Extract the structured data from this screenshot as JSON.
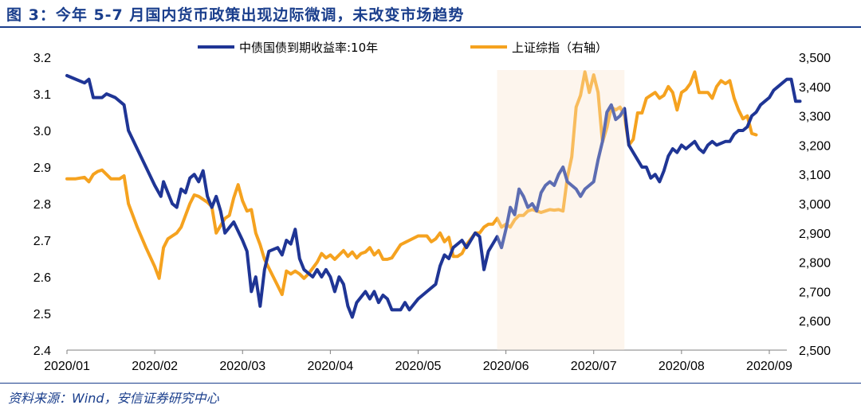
{
  "title": "图 3：今年 5-7 月国内货币政策出现边际微调，未改变市场趋势",
  "source": "资料来源：Wind，安信证券研究中心",
  "colors": {
    "bond": "#1f3595",
    "index": "#f5a21f",
    "shade": "#fdf1e7",
    "title": "#1a3e8c"
  },
  "chart_data": {
    "type": "line",
    "x_ticks": [
      "2020/01",
      "2020/02",
      "2020/03",
      "2020/04",
      "2020/05",
      "2020/06",
      "2020/07",
      "2020/08",
      "2020/09"
    ],
    "y_left": {
      "min": 2.4,
      "max": 3.2,
      "ticks": [
        "2.4",
        "2.5",
        "2.6",
        "2.7",
        "2.8",
        "2.9",
        "3.0",
        "3.1",
        "3.2"
      ]
    },
    "y_right": {
      "min": 2500,
      "max": 3500,
      "ticks": [
        "2,500",
        "2,600",
        "2,700",
        "2,800",
        "2,900",
        "3,000",
        "3,100",
        "3,200",
        "3,300",
        "3,400",
        "3,500"
      ]
    },
    "shaded_range": {
      "from_month": 4.9,
      "to_month": 6.35,
      "label": "May–Jul 2020"
    },
    "series": [
      {
        "name": "中债国债到期收益率:10年",
        "axis": "left",
        "points": [
          [
            0.0,
            3.15
          ],
          [
            0.1,
            3.14
          ],
          [
            0.2,
            3.13
          ],
          [
            0.25,
            3.14
          ],
          [
            0.3,
            3.09
          ],
          [
            0.4,
            3.09
          ],
          [
            0.45,
            3.1
          ],
          [
            0.55,
            3.09
          ],
          [
            0.65,
            3.07
          ],
          [
            0.7,
            3.0
          ],
          [
            0.8,
            2.95
          ],
          [
            0.9,
            2.9
          ],
          [
            1.0,
            2.85
          ],
          [
            1.07,
            2.82
          ],
          [
            1.1,
            2.86
          ],
          [
            1.15,
            2.83
          ],
          [
            1.2,
            2.8
          ],
          [
            1.25,
            2.79
          ],
          [
            1.3,
            2.84
          ],
          [
            1.35,
            2.83
          ],
          [
            1.4,
            2.87
          ],
          [
            1.45,
            2.88
          ],
          [
            1.5,
            2.86
          ],
          [
            1.55,
            2.89
          ],
          [
            1.6,
            2.82
          ],
          [
            1.65,
            2.79
          ],
          [
            1.7,
            2.82
          ],
          [
            1.75,
            2.78
          ],
          [
            1.8,
            2.72
          ],
          [
            1.9,
            2.75
          ],
          [
            2.0,
            2.7
          ],
          [
            2.05,
            2.67
          ],
          [
            2.1,
            2.56
          ],
          [
            2.15,
            2.6
          ],
          [
            2.2,
            2.52
          ],
          [
            2.25,
            2.62
          ],
          [
            2.3,
            2.67
          ],
          [
            2.4,
            2.68
          ],
          [
            2.45,
            2.66
          ],
          [
            2.5,
            2.7
          ],
          [
            2.55,
            2.69
          ],
          [
            2.6,
            2.73
          ],
          [
            2.65,
            2.65
          ],
          [
            2.7,
            2.62
          ],
          [
            2.8,
            2.6
          ],
          [
            2.85,
            2.62
          ],
          [
            2.9,
            2.6
          ],
          [
            2.95,
            2.62
          ],
          [
            3.0,
            2.6
          ],
          [
            3.05,
            2.56
          ],
          [
            3.1,
            2.6
          ],
          [
            3.15,
            2.58
          ],
          [
            3.2,
            2.52
          ],
          [
            3.25,
            2.49
          ],
          [
            3.3,
            2.53
          ],
          [
            3.4,
            2.56
          ],
          [
            3.45,
            2.54
          ],
          [
            3.5,
            2.56
          ],
          [
            3.55,
            2.53
          ],
          [
            3.6,
            2.55
          ],
          [
            3.65,
            2.54
          ],
          [
            3.7,
            2.51
          ],
          [
            3.8,
            2.51
          ],
          [
            3.85,
            2.53
          ],
          [
            3.9,
            2.51
          ],
          [
            4.0,
            2.54
          ],
          [
            4.1,
            2.56
          ],
          [
            4.2,
            2.58
          ],
          [
            4.25,
            2.63
          ],
          [
            4.3,
            2.66
          ],
          [
            4.35,
            2.65
          ],
          [
            4.4,
            2.68
          ],
          [
            4.45,
            2.69
          ],
          [
            4.5,
            2.7
          ],
          [
            4.55,
            2.68
          ],
          [
            4.6,
            2.7
          ],
          [
            4.65,
            2.72
          ],
          [
            4.7,
            2.71
          ],
          [
            4.75,
            2.62
          ],
          [
            4.8,
            2.67
          ],
          [
            4.85,
            2.69
          ],
          [
            4.9,
            2.71
          ],
          [
            4.95,
            2.68
          ],
          [
            5.0,
            2.73
          ],
          [
            5.05,
            2.79
          ],
          [
            5.1,
            2.77
          ],
          [
            5.15,
            2.84
          ],
          [
            5.2,
            2.82
          ],
          [
            5.25,
            2.79
          ],
          [
            5.3,
            2.8
          ],
          [
            5.35,
            2.78
          ],
          [
            5.4,
            2.83
          ],
          [
            5.45,
            2.85
          ],
          [
            5.5,
            2.86
          ],
          [
            5.55,
            2.85
          ],
          [
            5.6,
            2.88
          ],
          [
            5.65,
            2.9
          ],
          [
            5.7,
            2.86
          ],
          [
            5.75,
            2.85
          ],
          [
            5.8,
            2.84
          ],
          [
            5.85,
            2.82
          ],
          [
            5.9,
            2.84
          ],
          [
            6.0,
            2.86
          ],
          [
            6.05,
            2.92
          ],
          [
            6.1,
            2.97
          ],
          [
            6.15,
            3.05
          ],
          [
            6.2,
            3.07
          ],
          [
            6.25,
            3.03
          ],
          [
            6.3,
            3.04
          ],
          [
            6.35,
            3.06
          ],
          [
            6.4,
            2.96
          ],
          [
            6.45,
            2.94
          ],
          [
            6.5,
            2.92
          ],
          [
            6.55,
            2.9
          ],
          [
            6.6,
            2.9
          ],
          [
            6.65,
            2.87
          ],
          [
            6.7,
            2.88
          ],
          [
            6.75,
            2.86
          ],
          [
            6.8,
            2.89
          ],
          [
            6.85,
            2.93
          ],
          [
            6.9,
            2.95
          ],
          [
            6.95,
            2.94
          ],
          [
            7.0,
            2.96
          ],
          [
            7.05,
            2.95
          ],
          [
            7.1,
            2.96
          ],
          [
            7.15,
            2.97
          ],
          [
            7.2,
            2.95
          ],
          [
            7.25,
            2.94
          ],
          [
            7.3,
            2.96
          ],
          [
            7.35,
            2.97
          ],
          [
            7.4,
            2.96
          ],
          [
            7.5,
            2.97
          ],
          [
            7.55,
            2.97
          ],
          [
            7.6,
            2.99
          ],
          [
            7.65,
            3.0
          ],
          [
            7.7,
            3.0
          ],
          [
            7.75,
            3.01
          ],
          [
            7.8,
            3.04
          ],
          [
            7.85,
            3.05
          ],
          [
            7.9,
            3.07
          ],
          [
            7.95,
            3.08
          ],
          [
            8.0,
            3.09
          ],
          [
            8.05,
            3.11
          ],
          [
            8.1,
            3.12
          ],
          [
            8.15,
            3.13
          ],
          [
            8.2,
            3.14
          ],
          [
            8.25,
            3.14
          ],
          [
            8.3,
            3.08
          ],
          [
            8.35,
            3.08
          ]
        ]
      },
      {
        "name": "上证综指（右轴）",
        "axis": "right",
        "points": [
          [
            0.0,
            3085
          ],
          [
            0.1,
            3085
          ],
          [
            0.2,
            3090
          ],
          [
            0.25,
            3075
          ],
          [
            0.3,
            3100
          ],
          [
            0.35,
            3110
          ],
          [
            0.4,
            3115
          ],
          [
            0.45,
            3100
          ],
          [
            0.5,
            3085
          ],
          [
            0.6,
            3085
          ],
          [
            0.65,
            3095
          ],
          [
            0.7,
            3000
          ],
          [
            0.8,
            2920
          ],
          [
            0.9,
            2850
          ],
          [
            1.0,
            2785
          ],
          [
            1.05,
            2745
          ],
          [
            1.1,
            2850
          ],
          [
            1.15,
            2880
          ],
          [
            1.2,
            2890
          ],
          [
            1.25,
            2900
          ],
          [
            1.3,
            2920
          ],
          [
            1.35,
            2960
          ],
          [
            1.4,
            3000
          ],
          [
            1.45,
            3030
          ],
          [
            1.5,
            3025
          ],
          [
            1.6,
            3005
          ],
          [
            1.65,
            2990
          ],
          [
            1.7,
            2900
          ],
          [
            1.75,
            2925
          ],
          [
            1.8,
            2950
          ],
          [
            1.85,
            2960
          ],
          [
            1.9,
            3020
          ],
          [
            1.95,
            3065
          ],
          [
            2.0,
            3010
          ],
          [
            2.05,
            2975
          ],
          [
            2.1,
            2980
          ],
          [
            2.15,
            2900
          ],
          [
            2.2,
            2860
          ],
          [
            2.25,
            2810
          ],
          [
            2.3,
            2780
          ],
          [
            2.35,
            2750
          ],
          [
            2.4,
            2720
          ],
          [
            2.45,
            2690
          ],
          [
            2.5,
            2770
          ],
          [
            2.55,
            2760
          ],
          [
            2.6,
            2770
          ],
          [
            2.65,
            2760
          ],
          [
            2.7,
            2745
          ],
          [
            2.75,
            2760
          ],
          [
            2.8,
            2780
          ],
          [
            2.85,
            2800
          ],
          [
            2.9,
            2830
          ],
          [
            2.95,
            2815
          ],
          [
            3.0,
            2825
          ],
          [
            3.05,
            2810
          ],
          [
            3.1,
            2825
          ],
          [
            3.15,
            2840
          ],
          [
            3.2,
            2820
          ],
          [
            3.25,
            2835
          ],
          [
            3.3,
            2815
          ],
          [
            3.35,
            2830
          ],
          [
            3.4,
            2835
          ],
          [
            3.45,
            2850
          ],
          [
            3.5,
            2825
          ],
          [
            3.55,
            2840
          ],
          [
            3.6,
            2810
          ],
          [
            3.65,
            2810
          ],
          [
            3.7,
            2815
          ],
          [
            3.8,
            2860
          ],
          [
            3.9,
            2875
          ],
          [
            4.0,
            2890
          ],
          [
            4.1,
            2890
          ],
          [
            4.15,
            2870
          ],
          [
            4.2,
            2880
          ],
          [
            4.25,
            2900
          ],
          [
            4.3,
            2870
          ],
          [
            4.35,
            2885
          ],
          [
            4.4,
            2820
          ],
          [
            4.45,
            2820
          ],
          [
            4.5,
            2830
          ],
          [
            4.55,
            2860
          ],
          [
            4.6,
            2880
          ],
          [
            4.65,
            2900
          ],
          [
            4.7,
            2900
          ],
          [
            4.75,
            2920
          ],
          [
            4.8,
            2930
          ],
          [
            4.85,
            2930
          ],
          [
            4.9,
            2950
          ],
          [
            4.95,
            2920
          ],
          [
            5.0,
            2930
          ],
          [
            5.05,
            2920
          ],
          [
            5.1,
            2945
          ],
          [
            5.15,
            2960
          ],
          [
            5.2,
            2960
          ],
          [
            5.25,
            2975
          ],
          [
            5.3,
            2980
          ],
          [
            5.35,
            2975
          ],
          [
            5.4,
            2970
          ],
          [
            5.45,
            2975
          ],
          [
            5.5,
            2980
          ],
          [
            5.55,
            2978
          ],
          [
            5.6,
            2980
          ],
          [
            5.65,
            2975
          ],
          [
            5.7,
            3090
          ],
          [
            5.75,
            3160
          ],
          [
            5.8,
            3330
          ],
          [
            5.85,
            3370
          ],
          [
            5.9,
            3450
          ],
          [
            5.95,
            3380
          ],
          [
            6.0,
            3440
          ],
          [
            6.05,
            3380
          ],
          [
            6.1,
            3210
          ],
          [
            6.15,
            3260
          ],
          [
            6.2,
            3330
          ],
          [
            6.25,
            3320
          ],
          [
            6.3,
            3330
          ],
          [
            6.35,
            3300
          ],
          [
            6.4,
            3200
          ],
          [
            6.45,
            3220
          ],
          [
            6.5,
            3310
          ],
          [
            6.55,
            3310
          ],
          [
            6.6,
            3360
          ],
          [
            6.65,
            3370
          ],
          [
            6.7,
            3380
          ],
          [
            6.75,
            3360
          ],
          [
            6.8,
            3370
          ],
          [
            6.85,
            3400
          ],
          [
            6.9,
            3380
          ],
          [
            6.95,
            3320
          ],
          [
            7.0,
            3380
          ],
          [
            7.05,
            3390
          ],
          [
            7.1,
            3410
          ],
          [
            7.15,
            3450
          ],
          [
            7.2,
            3380
          ],
          [
            7.25,
            3380
          ],
          [
            7.3,
            3380
          ],
          [
            7.35,
            3360
          ],
          [
            7.4,
            3400
          ],
          [
            7.45,
            3420
          ],
          [
            7.5,
            3410
          ],
          [
            7.55,
            3420
          ],
          [
            7.6,
            3360
          ],
          [
            7.65,
            3320
          ],
          [
            7.7,
            3290
          ],
          [
            7.75,
            3300
          ],
          [
            7.8,
            3240
          ],
          [
            7.85,
            3235
          ]
        ]
      }
    ]
  }
}
